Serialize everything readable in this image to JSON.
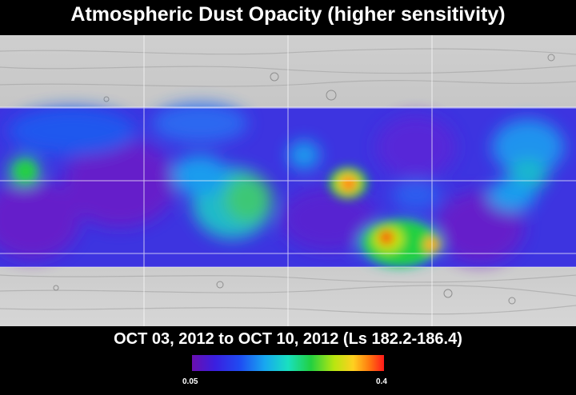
{
  "title": "Atmospheric Dust Opacity (higher sensitivity)",
  "date_range": "OCT 03, 2012 to OCT 10, 2012 (Ls 182.2-186.4)",
  "colorbar": {
    "min_label": "0.05",
    "max_label": "0.4",
    "stops": [
      "#6a0fb0",
      "#3a1fe0",
      "#1f4cf2",
      "#18a8f0",
      "#19e0c0",
      "#22d040",
      "#b8e610",
      "#ffd020",
      "#ff7d10",
      "#ff1a1a"
    ]
  },
  "map": {
    "basemap": "grayscale shaded relief",
    "grid": true,
    "hotspots": [
      {
        "name": "hotspot-center",
        "opacity": 0.38
      },
      {
        "name": "hotspot-south",
        "opacity": 0.4
      },
      {
        "name": "hotspot-west",
        "opacity": 0.17
      }
    ]
  }
}
